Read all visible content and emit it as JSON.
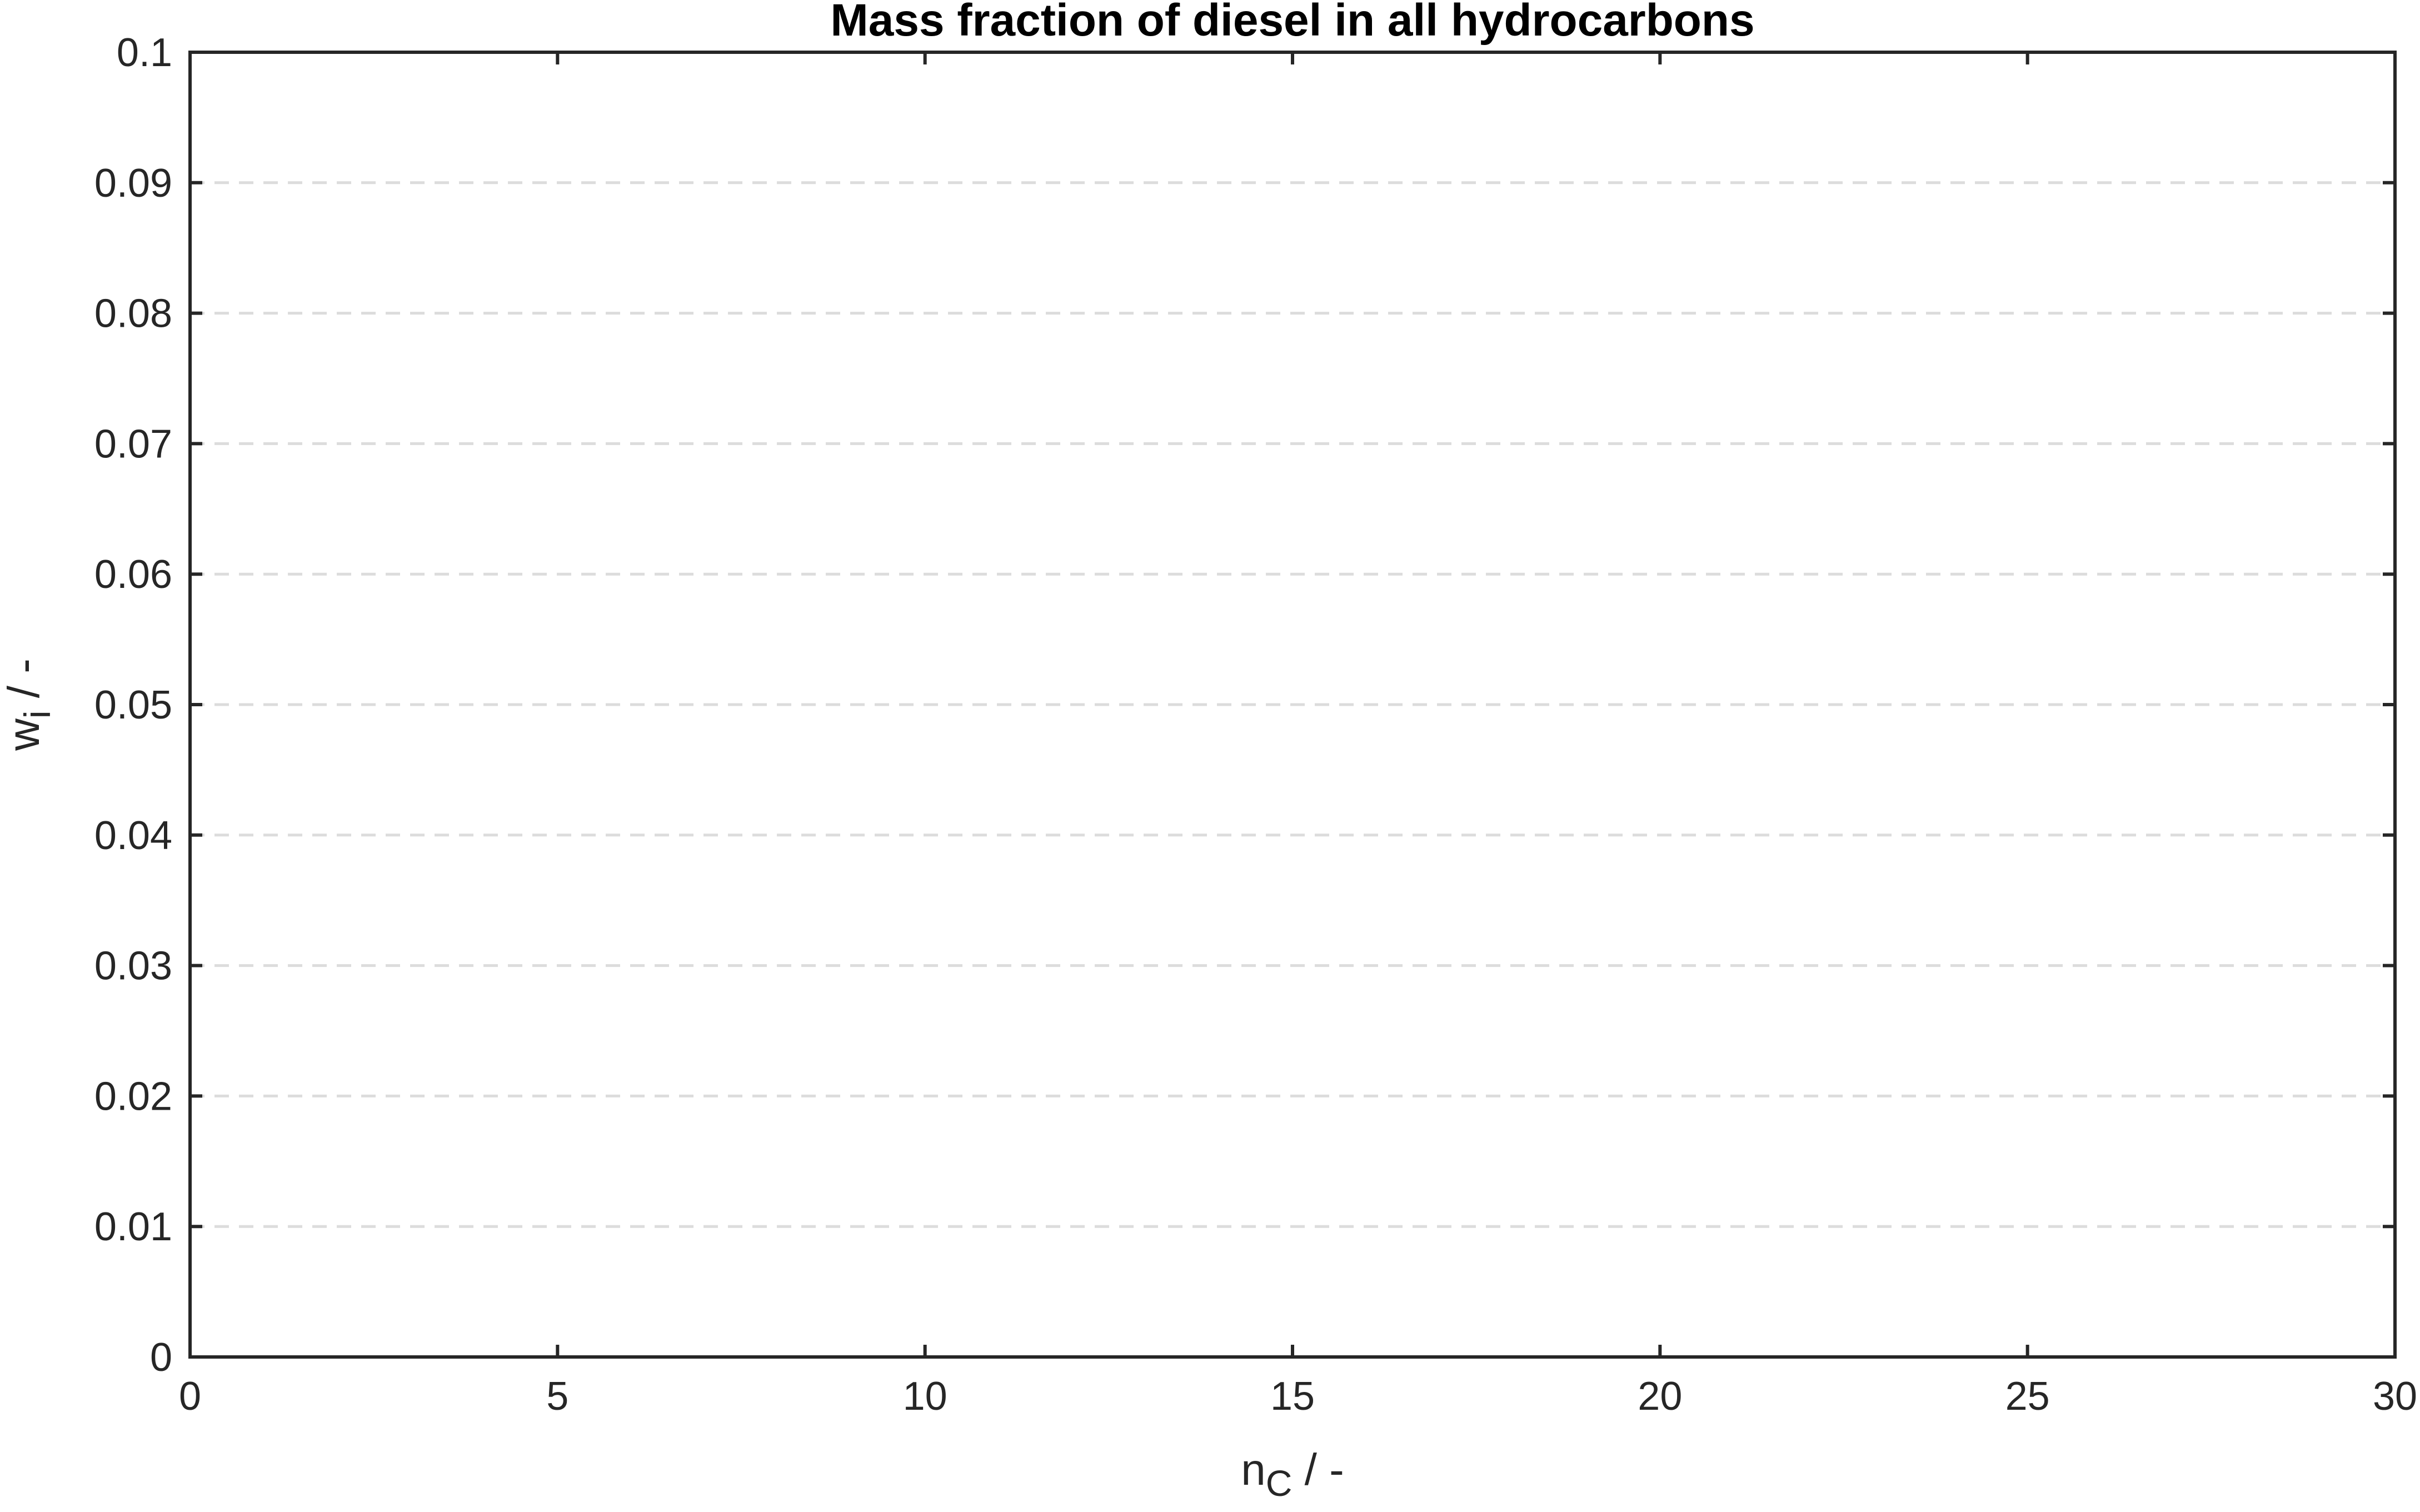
{
  "chart_data": {
    "type": "line",
    "title": "Mass fraction of diesel in all hydrocarbons",
    "xlabel": {
      "main": "n",
      "sub": "C",
      "rest": " / -"
    },
    "ylabel": {
      "main": "w",
      "sub": "i",
      "rest": " / -"
    },
    "xlim": [
      0,
      30
    ],
    "ylim": [
      0,
      0.1
    ],
    "xticks": [
      0,
      5,
      10,
      15,
      20,
      25,
      30
    ],
    "xtick_labels": [
      "0",
      "5",
      "10",
      "15",
      "20",
      "25",
      "30"
    ],
    "yticks": [
      0,
      0.01,
      0.02,
      0.03,
      0.04,
      0.05,
      0.06,
      0.07,
      0.08,
      0.09,
      0.1
    ],
    "ytick_labels": [
      "0",
      "0.01",
      "0.02",
      "0.03",
      "0.04",
      "0.05",
      "0.06",
      "0.07",
      "0.08",
      "0.09",
      "0.1"
    ],
    "grid": {
      "y": true,
      "x": false,
      "style": "dashed"
    },
    "series": [],
    "colors": {
      "axis": "#262626",
      "grid": "#dcdcdc",
      "title": "#000000"
    }
  }
}
